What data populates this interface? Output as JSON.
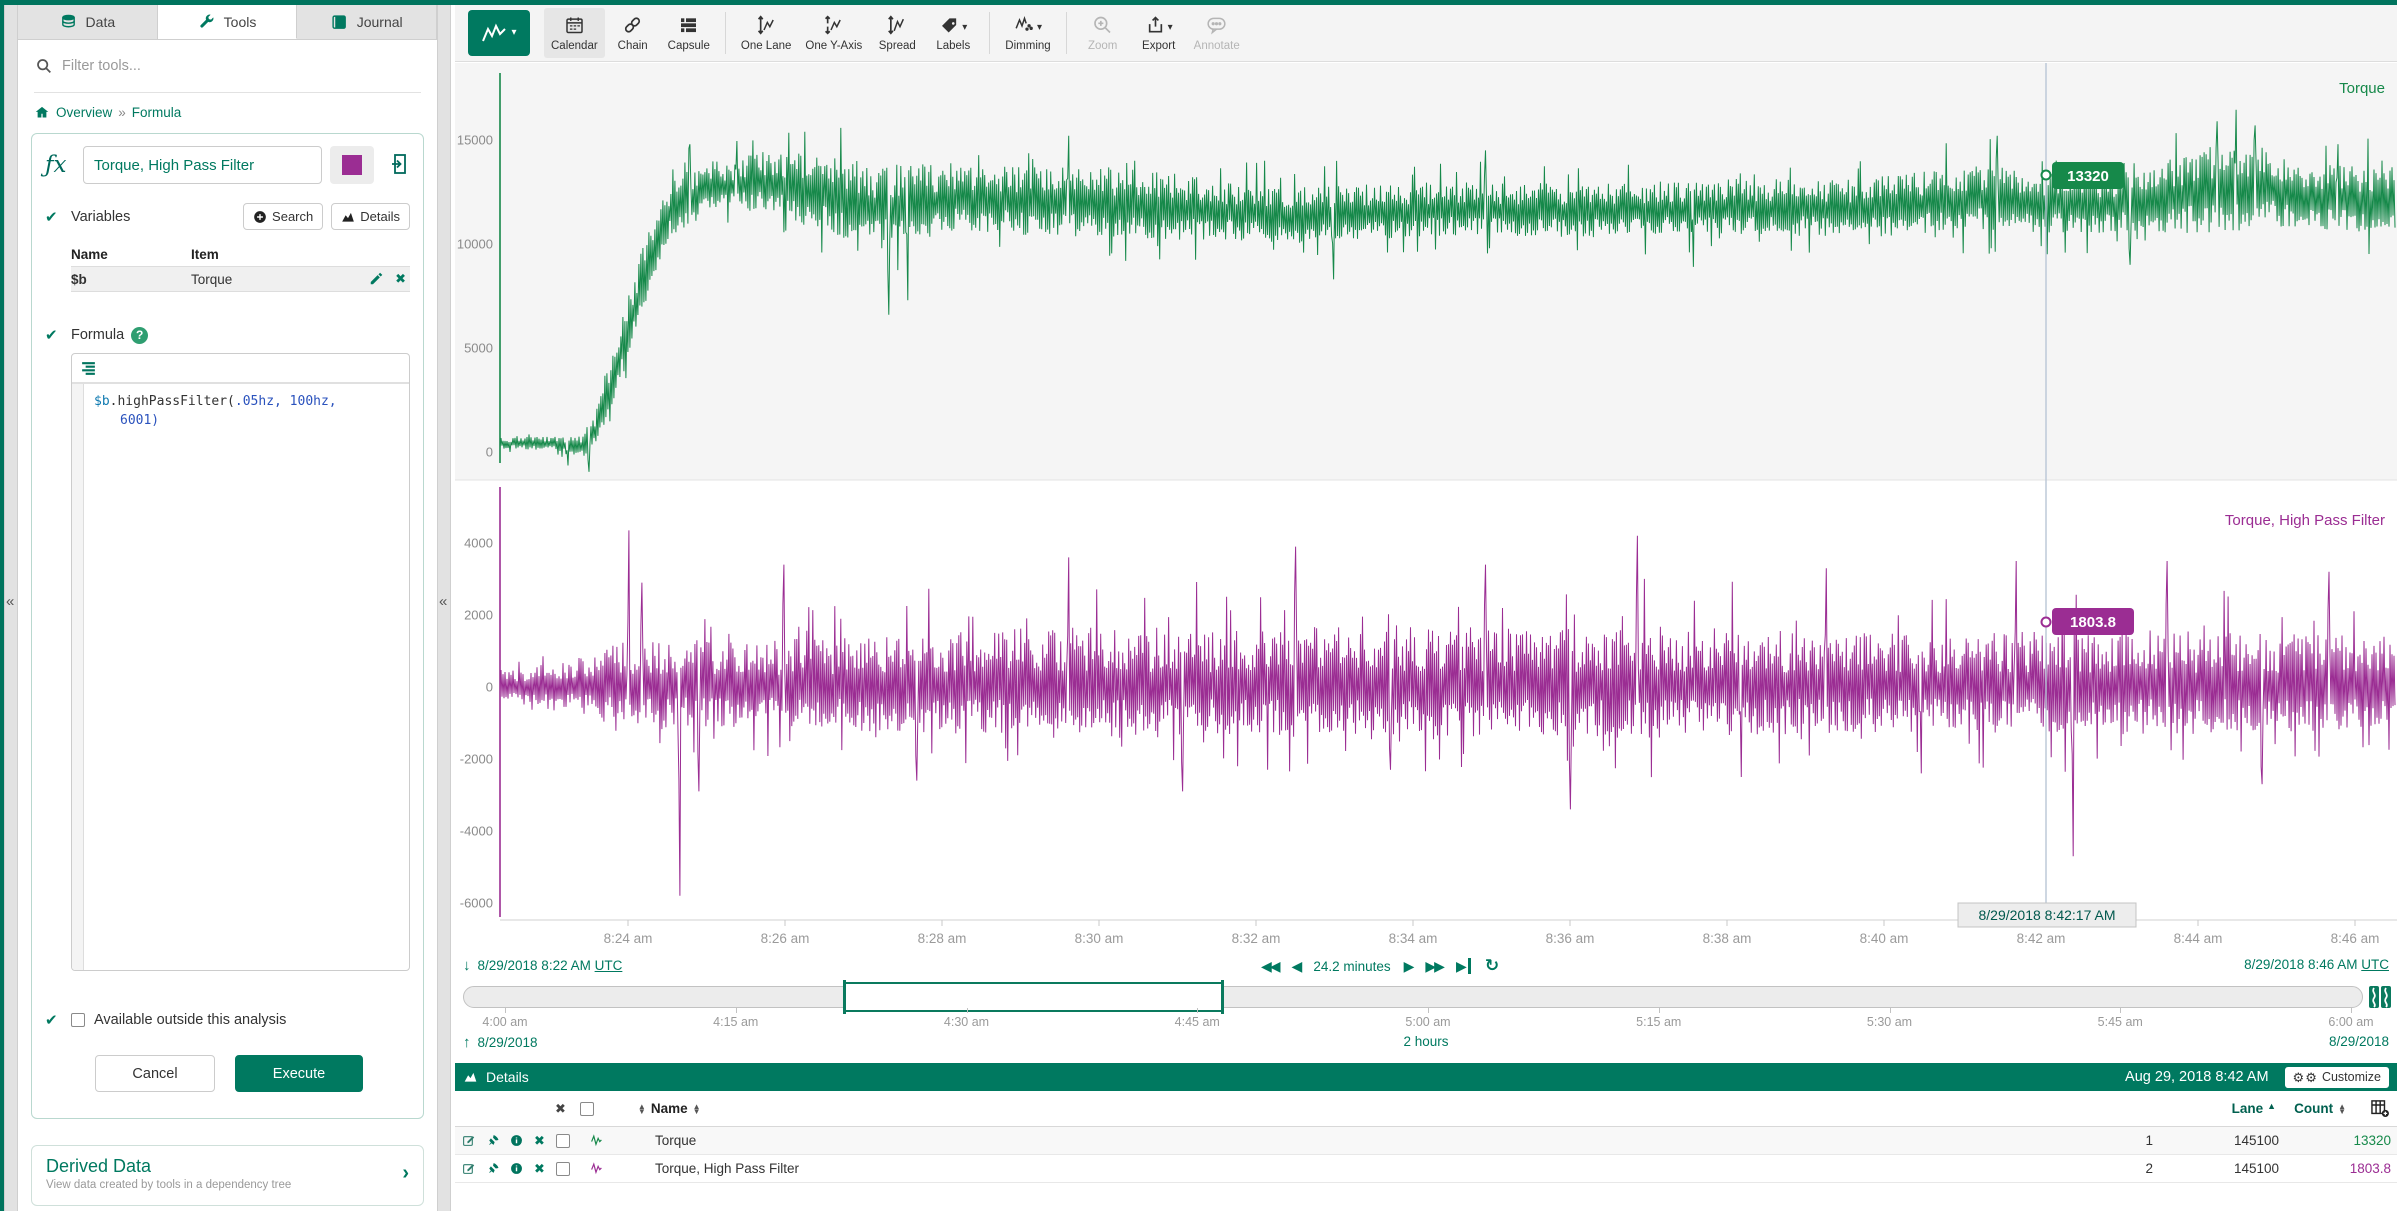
{
  "colors": {
    "brand": "#007960",
    "series_green": "#16894a",
    "series_purple": "#9b2d93",
    "cursor_line": "#b9c6d6"
  },
  "sidebar": {
    "tabs": [
      {
        "label": "Data",
        "icon": "database-icon",
        "active": false
      },
      {
        "label": "Tools",
        "icon": "wrench-icon",
        "active": true
      },
      {
        "label": "Journal",
        "icon": "book-icon",
        "active": false
      }
    ],
    "filter_placeholder": "Filter tools...",
    "breadcrumb": {
      "overview": "Overview",
      "separator": "»",
      "current": "Formula"
    },
    "tool": {
      "name": "Torque, High Pass Filter",
      "swatch_color": "#9b2d93",
      "variables_label": "Variables",
      "search_button": "Search",
      "details_button": "Details",
      "variables_table": {
        "name_header": "Name",
        "item_header": "Item",
        "rows": [
          {
            "name": "$b",
            "item": "Torque"
          }
        ]
      },
      "formula_label": "Formula",
      "code": {
        "line1_var": "$b",
        "line1_plain": ".highPassFilter(",
        "line1_args": ".05hz, 100hz,",
        "line2": "6001)"
      },
      "available_label": "Available outside this analysis",
      "cancel_label": "Cancel",
      "execute_label": "Execute"
    },
    "derived": {
      "title": "Derived Data",
      "subtitle": "View data created by tools in a dependency tree"
    }
  },
  "toolbar": {
    "buttons": [
      {
        "label": "Calendar",
        "icon": "calendar-icon",
        "active": true,
        "disabled": false,
        "caret": false,
        "divider_after": false
      },
      {
        "label": "Chain",
        "icon": "chain-icon",
        "active": false,
        "disabled": false,
        "caret": false,
        "divider_after": false
      },
      {
        "label": "Capsule",
        "icon": "capsule-icon",
        "active": false,
        "disabled": false,
        "caret": false,
        "divider_after": true
      },
      {
        "label": "One Lane",
        "icon": "one-lane-icon",
        "active": false,
        "disabled": false,
        "caret": false,
        "divider_after": false
      },
      {
        "label": "One Y-Axis",
        "icon": "one-y-axis-icon",
        "active": false,
        "disabled": false,
        "caret": false,
        "divider_after": false
      },
      {
        "label": "Spread",
        "icon": "spread-icon",
        "active": false,
        "disabled": false,
        "caret": false,
        "divider_after": false
      },
      {
        "label": "Labels",
        "icon": "labels-icon",
        "active": false,
        "disabled": false,
        "caret": true,
        "divider_after": true
      },
      {
        "label": "Dimming",
        "icon": "dimming-icon",
        "active": false,
        "disabled": false,
        "caret": true,
        "divider_after": true
      },
      {
        "label": "Zoom",
        "icon": "zoom-icon",
        "active": false,
        "disabled": true,
        "caret": false,
        "divider_after": false
      },
      {
        "label": "Export",
        "icon": "export-icon",
        "active": false,
        "disabled": false,
        "caret": true,
        "divider_after": false
      },
      {
        "label": "Annotate",
        "icon": "annotate-icon",
        "active": false,
        "disabled": true,
        "caret": false,
        "divider_after": false
      }
    ]
  },
  "chart_data": [
    {
      "type": "line",
      "name": "Torque",
      "color": "#16894a",
      "lane": 1,
      "ylim": [
        -1300,
        18550
      ],
      "yticks": [
        0,
        5000,
        10000,
        15000
      ],
      "x_start": "8/29/2018 8:22 AM UTC",
      "x_end": "8/29/2018 8:46 AM UTC",
      "cursor": {
        "time": "8/29/2018 8:42:17 AM",
        "value": "13320"
      },
      "envelope_mean": [
        [
          0,
          400
        ],
        [
          0.03,
          400
        ],
        [
          0.042,
          200
        ],
        [
          0.05,
          900
        ],
        [
          0.06,
          3500
        ],
        [
          0.075,
          8000
        ],
        [
          0.09,
          11600
        ],
        [
          0.11,
          12600
        ],
        [
          0.14,
          12900
        ],
        [
          0.17,
          12300
        ],
        [
          0.2,
          11600
        ],
        [
          0.24,
          12100
        ],
        [
          0.29,
          11900
        ],
        [
          0.35,
          11700
        ],
        [
          0.42,
          11300
        ],
        [
          0.5,
          11600
        ],
        [
          0.58,
          11500
        ],
        [
          0.65,
          11700
        ],
        [
          0.72,
          11600
        ],
        [
          0.78,
          12100
        ],
        [
          0.84,
          11700
        ],
        [
          0.9,
          12400
        ],
        [
          0.93,
          12600
        ],
        [
          0.96,
          12100
        ],
        [
          1,
          11900
        ]
      ],
      "envelope_amp": [
        [
          0,
          300
        ],
        [
          0.03,
          360
        ],
        [
          0.042,
          700
        ],
        [
          0.05,
          800
        ],
        [
          0.06,
          1500
        ],
        [
          0.075,
          1800
        ],
        [
          0.09,
          1500
        ],
        [
          0.12,
          1300
        ],
        [
          0.17,
          2000
        ],
        [
          0.2,
          2200
        ],
        [
          0.25,
          1700
        ],
        [
          0.32,
          1900
        ],
        [
          0.4,
          1500
        ],
        [
          0.5,
          1400
        ],
        [
          0.6,
          1400
        ],
        [
          0.7,
          1500
        ],
        [
          0.78,
          1700
        ],
        [
          0.85,
          1500
        ],
        [
          0.91,
          2400
        ],
        [
          0.95,
          1700
        ],
        [
          1,
          1800
        ]
      ],
      "spikes": [
        [
          0.036,
          -650
        ],
        [
          0.047,
          -950
        ],
        [
          0.1,
          14800
        ],
        [
          0.125,
          14950
        ],
        [
          0.205,
          6600
        ],
        [
          0.215,
          7300
        ],
        [
          0.3,
          15200
        ],
        [
          0.44,
          8300
        ],
        [
          0.52,
          14500
        ],
        [
          0.63,
          8900
        ],
        [
          0.79,
          15200
        ],
        [
          0.86,
          9000
        ],
        [
          0.906,
          15900
        ],
        [
          0.916,
          16450
        ],
        [
          0.926,
          15700
        ],
        [
          0.97,
          14800
        ]
      ]
    },
    {
      "type": "line",
      "name": "Torque, High Pass Filter",
      "color": "#9b2d93",
      "lane": 2,
      "ylim": [
        -6500,
        5750
      ],
      "yticks": [
        -6000,
        -4000,
        -2000,
        0,
        2000,
        4000
      ],
      "x_start": "8/29/2018 8:22 AM UTC",
      "x_end": "8/29/2018 8:46 AM UTC",
      "cursor": {
        "time": "8/29/2018 8:42:17 AM",
        "value": "1803.8"
      },
      "envelope_mean": [
        [
          0,
          0
        ],
        [
          1,
          0
        ]
      ],
      "envelope_amp": [
        [
          0,
          550
        ],
        [
          0.03,
          650
        ],
        [
          0.05,
          1100
        ],
        [
          0.08,
          1400
        ],
        [
          0.12,
          1300
        ],
        [
          0.18,
          1400
        ],
        [
          0.25,
          1600
        ],
        [
          0.32,
          1700
        ],
        [
          0.4,
          1600
        ],
        [
          0.48,
          1800
        ],
        [
          0.55,
          1600
        ],
        [
          0.62,
          1700
        ],
        [
          0.7,
          1500
        ],
        [
          0.78,
          1500
        ],
        [
          0.85,
          1600
        ],
        [
          0.92,
          1500
        ],
        [
          1,
          1400
        ]
      ],
      "spikes": [
        [
          0.068,
          4350
        ],
        [
          0.075,
          2900
        ],
        [
          0.095,
          -5800
        ],
        [
          0.105,
          -2900
        ],
        [
          0.15,
          3400
        ],
        [
          0.22,
          -2600
        ],
        [
          0.3,
          3600
        ],
        [
          0.36,
          -2900
        ],
        [
          0.42,
          3900
        ],
        [
          0.47,
          -2300
        ],
        [
          0.52,
          3400
        ],
        [
          0.565,
          -3400
        ],
        [
          0.6,
          4200
        ],
        [
          0.655,
          -2500
        ],
        [
          0.7,
          3300
        ],
        [
          0.75,
          -2400
        ],
        [
          0.8,
          3500
        ],
        [
          0.83,
          -4700
        ],
        [
          0.88,
          3500
        ],
        [
          0.93,
          -2700
        ],
        [
          0.965,
          3200
        ]
      ]
    }
  ],
  "xaxis": {
    "ticks": [
      "8:24 am",
      "8:26 am",
      "8:28 am",
      "8:30 am",
      "8:32 am",
      "8:34 am",
      "8:36 am",
      "8:38 am",
      "8:40 am",
      "8:42 am",
      "8:44 am",
      "8:46 am"
    ],
    "cursor_label": "8/29/2018 8:42:17 AM"
  },
  "range_row": {
    "start": "8/29/2018 8:22 AM",
    "start_tz": "UTC",
    "duration": "24.2 minutes",
    "end": "8/29/2018 8:46 AM",
    "end_tz": "UTC"
  },
  "timeline": {
    "ticks": [
      "4:00 am",
      "4:15 am",
      "4:30 am",
      "4:45 am",
      "5:00 am",
      "5:15 am",
      "5:30 am",
      "5:45 am",
      "6:00 am"
    ],
    "brush_start_frac": 0.2,
    "brush_end_frac": 0.401,
    "date_left": "8/29/2018",
    "duration": "2 hours",
    "date_right": "8/29/2018"
  },
  "details": {
    "title": "Details",
    "timestamp": "Aug 29, 2018 8:42 AM",
    "customize_label": "Customize",
    "name_header": "Name",
    "lane_header": "Lane",
    "count_header": "Count",
    "rows": [
      {
        "name": "Torque",
        "lane": "1",
        "count": "145100",
        "value": "13320",
        "color": "#16894a"
      },
      {
        "name": "Torque, High Pass Filter",
        "lane": "2",
        "count": "145100",
        "value": "1803.8",
        "color": "#9b2d93"
      }
    ]
  }
}
